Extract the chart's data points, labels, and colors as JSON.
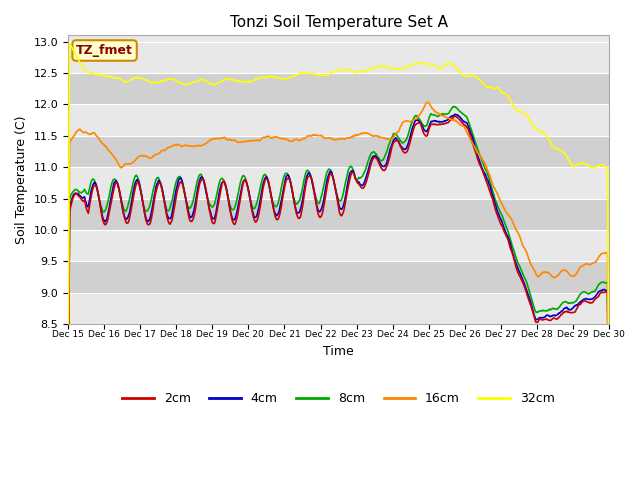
{
  "title": "Tonzi Soil Temperature Set A",
  "xlabel": "Time",
  "ylabel": "Soil Temperature (C)",
  "ylim": [
    8.5,
    13.1
  ],
  "xlim": [
    0,
    360
  ],
  "background_color": "#ffffff",
  "plot_bg_light": "#e8e8e8",
  "plot_bg_dark": "#d0d0d0",
  "grid_color": "#c0c0c0",
  "legend_label": "TZ_fmet",
  "legend_bg": "#ffffcc",
  "legend_border": "#cc0000",
  "series_colors": {
    "2cm": "#cc0000",
    "4cm": "#0000cc",
    "8cm": "#00aa00",
    "16cm": "#ff8800",
    "32cm": "#ffff00"
  },
  "xtick_labels": [
    "Dec 15",
    "Dec 16",
    "Dec 17",
    "Dec 18",
    "Dec 19",
    "Dec 20",
    "Dec 21",
    "Dec 22",
    "Dec 23",
    "Dec 24",
    "Dec 25",
    "Dec 26",
    "Dec 27",
    "Dec 28",
    "Dec 29",
    "Dec 30"
  ],
  "xtick_positions": [
    0,
    24,
    48,
    72,
    96,
    120,
    144,
    168,
    192,
    216,
    240,
    264,
    288,
    312,
    336,
    360
  ],
  "yticks": [
    8.5,
    9.0,
    9.5,
    10.0,
    10.5,
    11.0,
    11.5,
    12.0,
    12.5,
    13.0
  ]
}
